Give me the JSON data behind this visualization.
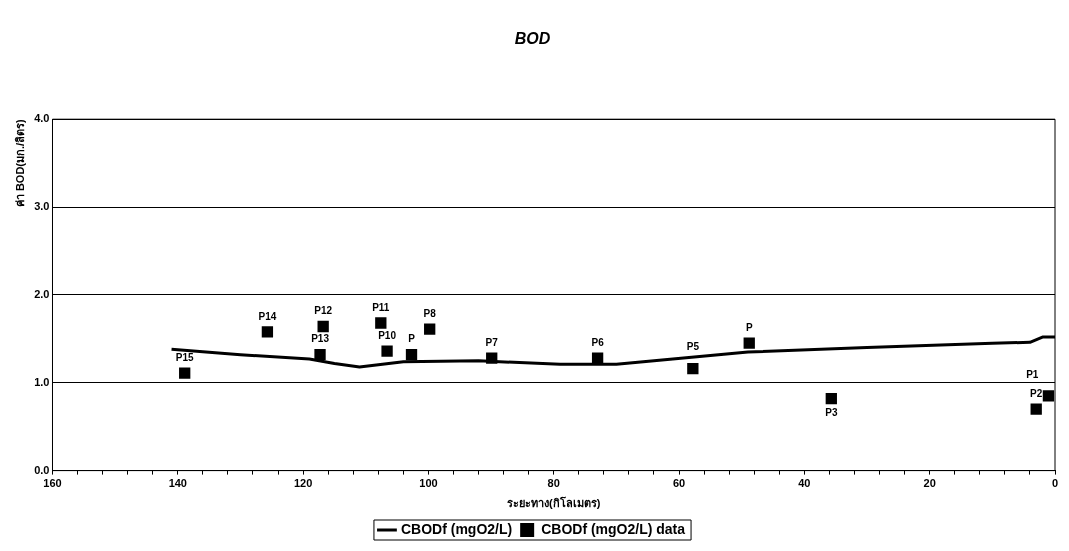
{
  "chart_data": {
    "type": "scatter",
    "title": "BOD",
    "xlabel": "ระยะทาง(กิโลเมตร)",
    "ylabel": "ค่า BOD(มก./ลิตร)",
    "xlim": [
      160,
      0
    ],
    "xticks": [
      160,
      {
        "value": 156,
        "label": null
      },
      {
        "value": 152,
        "label": null
      },
      {
        "value": 148,
        "label": null
      },
      {
        "value": 144,
        "label": null
      },
      140,
      {
        "value": 136,
        "label": null
      },
      {
        "value": 132,
        "label": null
      },
      {
        "value": 128,
        "label": null
      },
      {
        "value": 124,
        "label": null
      },
      120,
      {
        "value": 116,
        "label": null
      },
      {
        "value": 112,
        "label": null
      },
      {
        "value": 108,
        "label": null
      },
      {
        "value": 104,
        "label": null
      },
      100,
      {
        "value": 96,
        "label": null
      },
      {
        "value": 92,
        "label": null
      },
      {
        "value": 88,
        "label": null
      },
      {
        "value": 84,
        "label": null
      },
      80,
      {
        "value": 76,
        "label": null
      },
      {
        "value": 72,
        "label": null
      },
      {
        "value": 68,
        "label": null
      },
      {
        "value": 64,
        "label": null
      },
      60,
      {
        "value": 56,
        "label": null
      },
      {
        "value": 52,
        "label": null
      },
      {
        "value": 48,
        "label": null
      },
      {
        "value": 44,
        "label": null
      },
      40,
      {
        "value": 36,
        "label": null
      },
      {
        "value": 32,
        "label": null
      },
      {
        "value": 28,
        "label": null
      },
      {
        "value": 24,
        "label": null
      },
      20,
      {
        "value": 16,
        "label": null
      },
      {
        "value": 12,
        "label": null
      },
      {
        "value": 8,
        "label": null
      },
      {
        "value": 4,
        "label": null
      },
      0
    ],
    "ylim": [
      0,
      4
    ],
    "yticks": [
      {
        "value": 0,
        "label": "0.0"
      },
      {
        "value": 1,
        "label": "1.0"
      },
      {
        "value": 2,
        "label": "2.0"
      },
      {
        "value": 3,
        "label": "3.0"
      },
      {
        "value": 4,
        "label": "4.0"
      }
    ],
    "grid": "y",
    "legend": "bottom",
    "series": [
      {
        "name": "CBODf (mgO2/L)",
        "type": "line",
        "color": "#000000",
        "marker": "none",
        "line_style": "solid",
        "x": [
          141,
          130,
          119,
          115,
          111,
          104,
          92,
          79,
          70,
          58,
          49,
          30,
          10,
          4,
          2,
          0
        ],
        "values": [
          1.38,
          1.32,
          1.27,
          1.22,
          1.18,
          1.24,
          1.25,
          1.21,
          1.21,
          1.29,
          1.35,
          1.4,
          1.45,
          1.46,
          1.52,
          1.52
        ]
      },
      {
        "name": "CBODf (mgO2/L) data",
        "type": "scatter",
        "color": "#000000",
        "marker": "square",
        "x": [
          138.9,
          125.7,
          116.8,
          117.3,
          107.6,
          106.6,
          102.7,
          99.8,
          89.9,
          73.0,
          57.8,
          48.8,
          35.7,
          3.0,
          1.05
        ],
        "values": [
          1.11,
          1.58,
          1.64,
          1.32,
          1.68,
          1.36,
          1.32,
          1.61,
          1.28,
          1.28,
          1.16,
          1.45,
          0.82,
          0.7,
          0.85
        ]
      }
    ],
    "annotations": [
      {
        "text": "P15",
        "x": 138.9,
        "y": 1.11
      },
      {
        "text": "P14",
        "x": 125.7,
        "y": 1.58
      },
      {
        "text": "P12",
        "x": 116.8,
        "y": 1.64
      },
      {
        "text": "P13",
        "x": 117.3,
        "y": 1.32
      },
      {
        "text": "P11",
        "x": 107.6,
        "y": 1.68
      },
      {
        "text": "P10",
        "x": 106.6,
        "y": 1.36
      },
      {
        "text": "P",
        "x": 102.7,
        "y": 1.32
      },
      {
        "text": "P8",
        "x": 99.8,
        "y": 1.61
      },
      {
        "text": "P7",
        "x": 89.9,
        "y": 1.28
      },
      {
        "text": "P6",
        "x": 73.0,
        "y": 1.28
      },
      {
        "text": "P5",
        "x": 57.8,
        "y": 1.16
      },
      {
        "text": "P",
        "x": 48.8,
        "y": 1.45
      },
      {
        "text": "P3",
        "x": 35.7,
        "y": 0.82
      },
      {
        "text": "P2",
        "x": 3.0,
        "y": 0.7
      },
      {
        "text": "P1",
        "x": 1.05,
        "y": 0.85
      }
    ]
  }
}
